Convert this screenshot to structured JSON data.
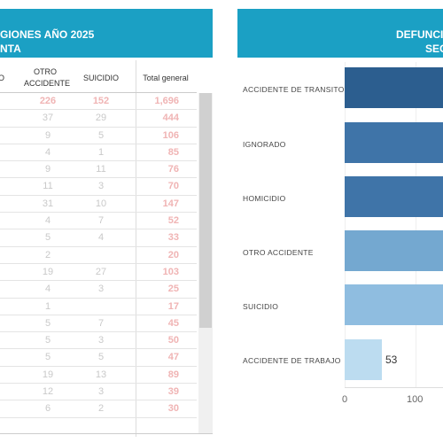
{
  "left_panel": {
    "title_line1": "GIONES  AÑO 2025",
    "title_line2": "NTA",
    "columns": [
      "O",
      "OTRO ACCIDENTE",
      "SUICIDIO",
      "Total general"
    ],
    "total_row": [
      "226",
      "152",
      "1,696"
    ],
    "rows": [
      [
        "37",
        "29",
        "444"
      ],
      [
        "9",
        "5",
        "106"
      ],
      [
        "4",
        "1",
        "85"
      ],
      [
        "9",
        "11",
        "76"
      ],
      [
        "11",
        "3",
        "70"
      ],
      [
        "31",
        "10",
        "147"
      ],
      [
        "4",
        "7",
        "52"
      ],
      [
        "5",
        "4",
        "33"
      ],
      [
        "2",
        "",
        "20"
      ],
      [
        "19",
        "27",
        "103"
      ],
      [
        "4",
        "3",
        "25"
      ],
      [
        "1",
        "",
        "17"
      ],
      [
        "5",
        "7",
        "45"
      ],
      [
        "5",
        "3",
        "50"
      ],
      [
        "5",
        "5",
        "47"
      ],
      [
        "19",
        "13",
        "89"
      ],
      [
        "12",
        "3",
        "39"
      ],
      [
        "6",
        "2",
        "30"
      ]
    ]
  },
  "right_panel": {
    "title_line1": "DEFUNCIO",
    "title_line2": "SEG",
    "colors": {
      "header": "#1ba0c4",
      "bar_dark": "#2c5e8f",
      "bar_mid": "#3f74a8",
      "bar_light": "#74a8d0",
      "bar_lighter": "#8fbde0",
      "bar_lightest": "#bcdcf0"
    }
  },
  "chart_data": {
    "type": "bar",
    "orientation": "horizontal",
    "categories": [
      "ACCIDENTE DE TRANSITO",
      "IGNORADO",
      "HOMICIDIO",
      "OTRO ACCIDENTE",
      "SUICIDIO",
      "ACCIDENTE DE TRABAJO"
    ],
    "values": [
      null,
      null,
      null,
      null,
      null,
      53
    ],
    "value_labels": [
      "",
      "",
      "",
      "",
      "",
      "53"
    ],
    "xticks": [
      "0",
      "100"
    ],
    "xlim": [
      0,
      100
    ]
  }
}
